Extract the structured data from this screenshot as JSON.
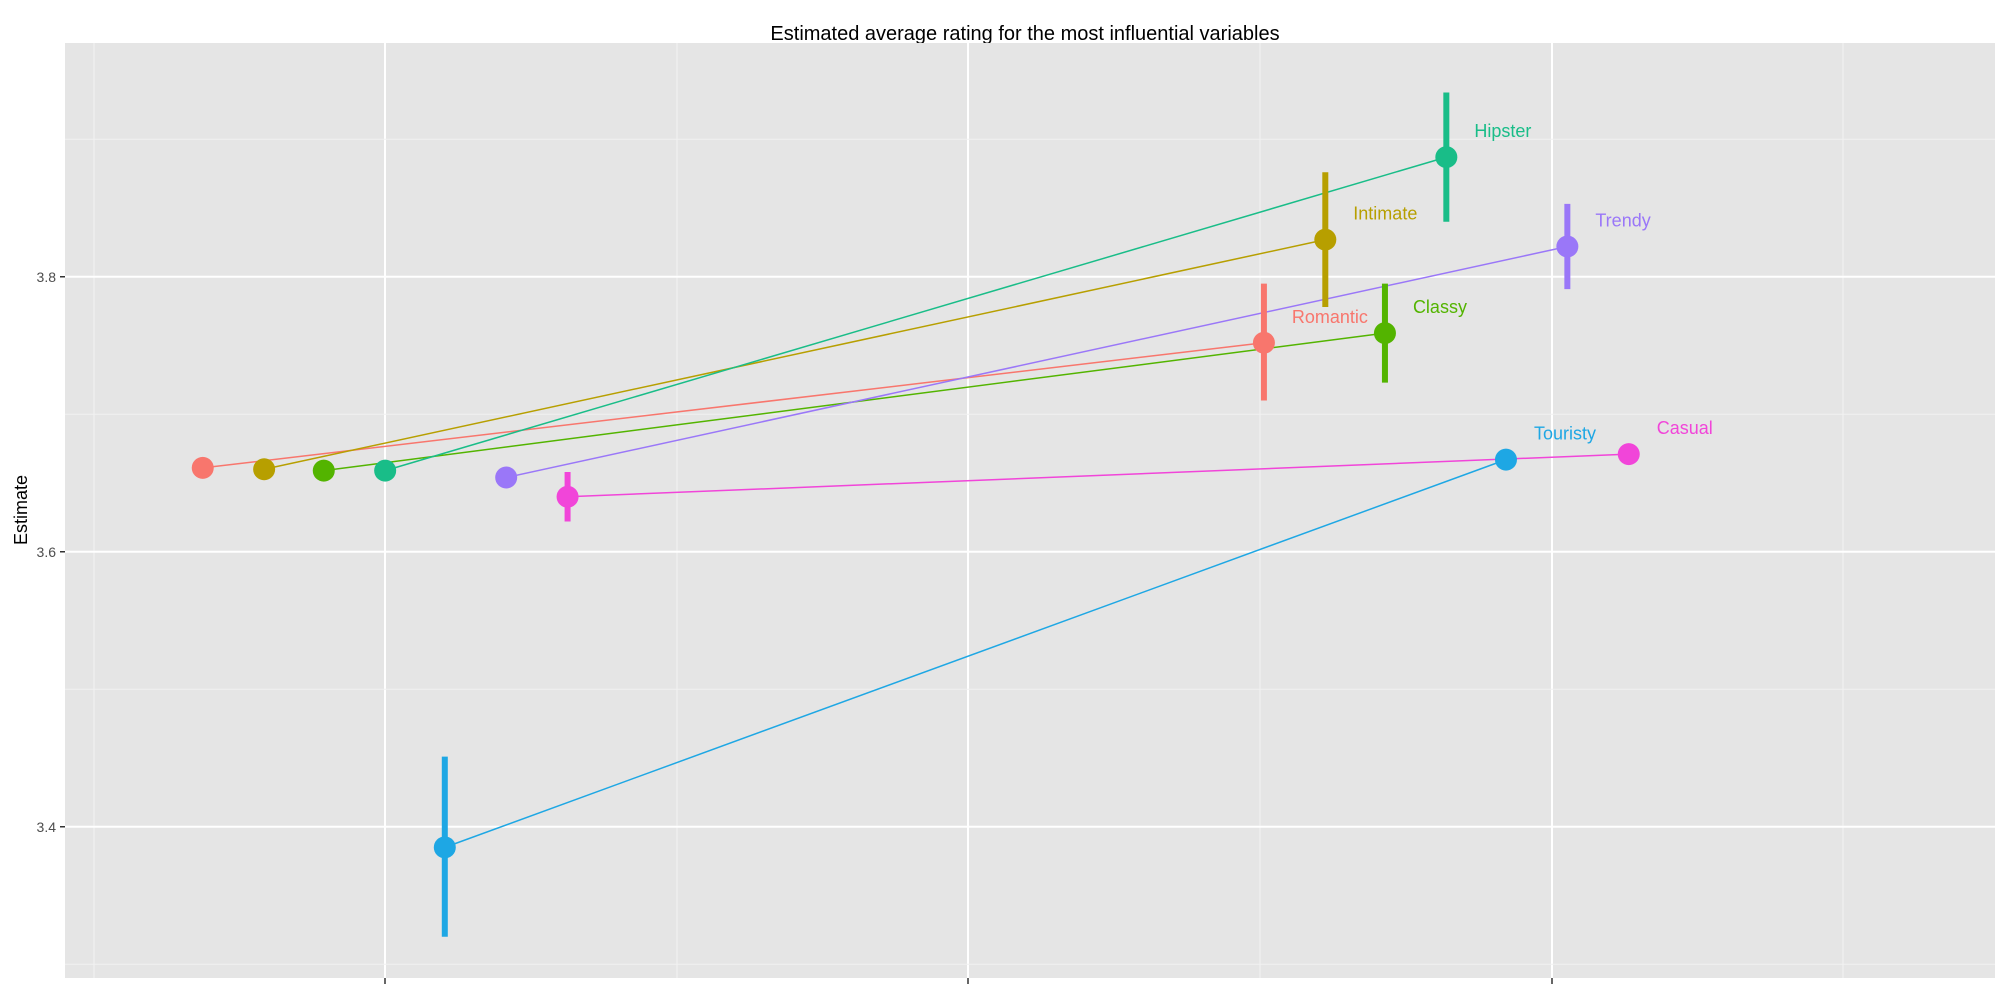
{
  "chart_data": {
    "type": "scatter",
    "title": "Estimated average rating for the most influential variables",
    "xlabel": "",
    "ylabel": "Estimate",
    "ylim": [
      3.29,
      3.97
    ],
    "yticks": [
      3.4,
      3.6,
      3.8
    ],
    "ytick_labels": [
      "3.4",
      "3.6",
      "3.8"
    ],
    "xlim": [
      0,
      1
    ],
    "grid": true,
    "legend": "none",
    "colors": {
      "panel": "#E5E5E5",
      "grid_major": "#FFFFFF",
      "grid_minor": "#F2F2F2",
      "tick_label": "#4D4D4D"
    },
    "series": [
      {
        "name": "Romantic",
        "color": "#F8766D",
        "points": [
          {
            "x": 0.062,
            "y": 3.661,
            "ymin": null,
            "ymax": null
          },
          {
            "x": 0.667,
            "y": 3.752,
            "ymin": 3.71,
            "ymax": 3.795
          }
        ]
      },
      {
        "name": "Intimate",
        "color": "#B79F00",
        "points": [
          {
            "x": 0.097,
            "y": 3.66,
            "ymin": null,
            "ymax": null
          },
          {
            "x": 0.702,
            "y": 3.827,
            "ymin": 3.778,
            "ymax": 3.876
          }
        ]
      },
      {
        "name": "Classy",
        "color": "#53B400",
        "points": [
          {
            "x": 0.131,
            "y": 3.659,
            "ymin": null,
            "ymax": null
          },
          {
            "x": 0.736,
            "y": 3.759,
            "ymin": 3.723,
            "ymax": 3.795
          }
        ]
      },
      {
        "name": "Hipster",
        "color": "#19BD88",
        "points": [
          {
            "x": 0.166,
            "y": 3.659,
            "ymin": null,
            "ymax": null
          },
          {
            "x": 0.771,
            "y": 3.887,
            "ymin": 3.84,
            "ymax": 3.934
          }
        ]
      },
      {
        "name": "Touristy",
        "color": "#1EA7E4",
        "points": [
          {
            "x": 0.2,
            "y": 3.385,
            "ymin": 3.32,
            "ymax": 3.451
          },
          {
            "x": 0.805,
            "y": 3.667,
            "ymin": null,
            "ymax": null
          }
        ]
      },
      {
        "name": "Trendy",
        "color": "#9A77F8",
        "points": [
          {
            "x": 0.235,
            "y": 3.654,
            "ymin": null,
            "ymax": null
          },
          {
            "x": 0.84,
            "y": 3.822,
            "ymin": 3.791,
            "ymax": 3.853
          }
        ]
      },
      {
        "name": "Casual",
        "color": "#F145D9",
        "points": [
          {
            "x": 0.27,
            "y": 3.64,
            "ymin": 3.622,
            "ymax": 3.658
          },
          {
            "x": 0.875,
            "y": 3.671,
            "ymin": null,
            "ymax": null
          }
        ]
      }
    ]
  }
}
